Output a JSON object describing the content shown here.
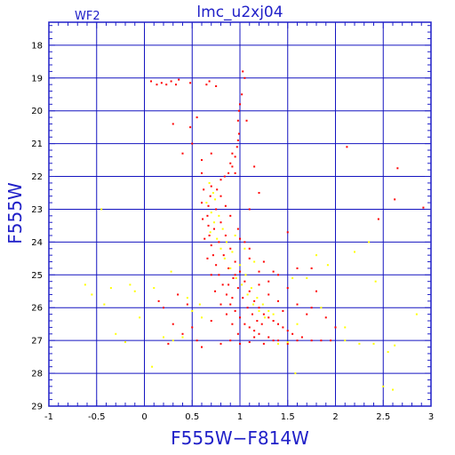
{
  "chart_data": {
    "type": "scatter",
    "title": "lmc_u2xj04",
    "subtitle": "WF2",
    "xlabel": "F555W−F814W",
    "ylabel": "F555W",
    "xlim": [
      -1,
      3
    ],
    "ylim": [
      29,
      17.3
    ],
    "y_inverted": true,
    "grid": true,
    "xticks": [
      -1,
      -0.5,
      0,
      0.5,
      1,
      1.5,
      2,
      2.5,
      3
    ],
    "yticks": [
      18,
      19,
      20,
      21,
      22,
      23,
      24,
      25,
      26,
      27,
      28,
      29
    ],
    "colors": {
      "frame": "#2020c8",
      "grid": "#1414c0",
      "series_red": "#ff0000",
      "series_yellow": "#ffff00"
    },
    "series": [
      {
        "color_key": "series_red",
        "points": [
          [
            0.07,
            19.1
          ],
          [
            0.13,
            19.2
          ],
          [
            0.18,
            19.15
          ],
          [
            0.23,
            19.2
          ],
          [
            0.28,
            19.1
          ],
          [
            0.33,
            19.2
          ],
          [
            0.36,
            19.05
          ],
          [
            0.48,
            19.15
          ],
          [
            0.65,
            19.2
          ],
          [
            0.68,
            19.1
          ],
          [
            0.75,
            19.25
          ],
          [
            1.0,
            19.8
          ],
          [
            0.99,
            20.0
          ],
          [
            0.98,
            20.3
          ],
          [
            0.99,
            20.7
          ],
          [
            0.97,
            21.1
          ],
          [
            0.95,
            21.4
          ],
          [
            0.92,
            21.7
          ],
          [
            0.88,
            21.9
          ],
          [
            0.84,
            22.0
          ],
          [
            0.8,
            22.1
          ],
          [
            0.9,
            21.6
          ],
          [
            0.92,
            21.3
          ],
          [
            0.98,
            20.9
          ],
          [
            1.02,
            19.5
          ],
          [
            1.05,
            19.0
          ],
          [
            1.03,
            18.8
          ],
          [
            1.07,
            20.3
          ],
          [
            0.95,
            21.9
          ],
          [
            0.7,
            22.3
          ],
          [
            0.69,
            22.6
          ],
          [
            0.67,
            22.9
          ],
          [
            0.66,
            23.2
          ],
          [
            0.67,
            23.5
          ],
          [
            0.68,
            23.8
          ],
          [
            0.7,
            24.1
          ],
          [
            0.72,
            24.4
          ],
          [
            0.75,
            24.7
          ],
          [
            0.78,
            25.0
          ],
          [
            0.82,
            25.3
          ],
          [
            0.86,
            25.6
          ],
          [
            0.9,
            25.9
          ],
          [
            0.95,
            26.1
          ],
          [
            1.0,
            26.3
          ],
          [
            1.05,
            26.5
          ],
          [
            1.1,
            26.6
          ],
          [
            1.15,
            26.7
          ],
          [
            1.2,
            26.8
          ],
          [
            1.3,
            26.9
          ],
          [
            1.4,
            27.0
          ],
          [
            0.75,
            23.0
          ],
          [
            0.8,
            23.4
          ],
          [
            0.85,
            23.8
          ],
          [
            0.9,
            24.2
          ],
          [
            0.95,
            24.6
          ],
          [
            1.0,
            24.9
          ],
          [
            1.05,
            25.2
          ],
          [
            1.1,
            25.5
          ],
          [
            1.15,
            25.8
          ],
          [
            1.2,
            26.0
          ],
          [
            1.25,
            26.2
          ],
          [
            0.73,
            23.6
          ],
          [
            0.78,
            24.0
          ],
          [
            0.83,
            24.4
          ],
          [
            0.88,
            24.8
          ],
          [
            0.93,
            25.1
          ],
          [
            0.98,
            25.4
          ],
          [
            1.03,
            25.7
          ],
          [
            1.08,
            26.0
          ],
          [
            1.13,
            26.2
          ],
          [
            1.18,
            26.4
          ],
          [
            1.23,
            26.5
          ],
          [
            0.62,
            22.4
          ],
          [
            0.6,
            22.8
          ],
          [
            0.61,
            23.3
          ],
          [
            0.63,
            23.9
          ],
          [
            0.66,
            24.5
          ],
          [
            0.7,
            25.0
          ],
          [
            0.74,
            25.5
          ],
          [
            0.8,
            25.9
          ],
          [
            0.86,
            26.2
          ],
          [
            0.92,
            26.5
          ],
          [
            0.98,
            26.8
          ],
          [
            1.35,
            26.4
          ],
          [
            1.45,
            26.6
          ],
          [
            1.55,
            26.8
          ],
          [
            1.65,
            26.9
          ],
          [
            1.75,
            27.0
          ],
          [
            1.85,
            27.0
          ],
          [
            1.5,
            27.1
          ],
          [
            1.6,
            27.0
          ],
          [
            1.3,
            26.3
          ],
          [
            1.4,
            26.5
          ],
          [
            1.5,
            26.7
          ],
          [
            0.7,
            26.4
          ],
          [
            0.5,
            26.6
          ],
          [
            0.55,
            27.0
          ],
          [
            0.4,
            26.8
          ],
          [
            0.3,
            26.5
          ],
          [
            0.25,
            27.1
          ],
          [
            0.6,
            27.2
          ],
          [
            0.8,
            27.1
          ],
          [
            0.9,
            27.0
          ],
          [
            1.0,
            27.1
          ],
          [
            1.1,
            27.05
          ],
          [
            1.3,
            25.2
          ],
          [
            1.5,
            25.4
          ],
          [
            1.6,
            25.9
          ],
          [
            1.7,
            26.2
          ],
          [
            1.4,
            25.0
          ],
          [
            1.6,
            24.8
          ],
          [
            1.8,
            25.5
          ],
          [
            1.75,
            26.0
          ],
          [
            1.9,
            26.3
          ],
          [
            2.0,
            26.6
          ],
          [
            1.95,
            27.0
          ],
          [
            0.5,
            21.0
          ],
          [
            0.4,
            21.3
          ],
          [
            0.6,
            21.5
          ],
          [
            0.3,
            20.4
          ],
          [
            0.55,
            20.2
          ],
          [
            0.48,
            20.5
          ],
          [
            0.6,
            21.9
          ],
          [
            0.7,
            21.3
          ],
          [
            1.15,
            21.7
          ],
          [
            1.2,
            22.5
          ],
          [
            1.1,
            23.0
          ],
          [
            2.12,
            21.1
          ],
          [
            2.65,
            21.75
          ],
          [
            2.62,
            22.7
          ],
          [
            2.45,
            23.3
          ],
          [
            2.92,
            22.95
          ],
          [
            1.5,
            23.7
          ],
          [
            1.75,
            24.8
          ],
          [
            0.35,
            25.6
          ],
          [
            0.45,
            25.9
          ],
          [
            0.15,
            25.8
          ],
          [
            0.2,
            26.0
          ],
          [
            1.1,
            24.2
          ],
          [
            1.25,
            24.6
          ],
          [
            1.35,
            24.9
          ],
          [
            1.2,
            25.3
          ],
          [
            1.3,
            25.6
          ],
          [
            1.4,
            25.8
          ],
          [
            1.45,
            26.1
          ],
          [
            1.15,
            26.9
          ],
          [
            1.25,
            27.1
          ],
          [
            1.35,
            27.0
          ],
          [
            0.95,
            25.0
          ],
          [
            1.05,
            24.0
          ],
          [
            0.98,
            23.6
          ],
          [
            0.9,
            23.2
          ],
          [
            0.85,
            22.9
          ],
          [
            0.8,
            22.6
          ],
          [
            0.76,
            22.4
          ],
          [
            1.0,
            23.9
          ],
          [
            1.1,
            24.5
          ],
          [
            1.2,
            24.9
          ],
          [
            0.88,
            25.3
          ],
          [
            0.92,
            25.7
          ]
        ]
      },
      {
        "color_key": "series_yellow",
        "points": [
          [
            0.68,
            22.2
          ],
          [
            0.72,
            22.5
          ],
          [
            0.65,
            22.8
          ],
          [
            0.7,
            23.1
          ],
          [
            0.73,
            23.4
          ],
          [
            0.69,
            23.7
          ],
          [
            0.76,
            23.9
          ],
          [
            0.8,
            24.2
          ],
          [
            0.84,
            24.5
          ],
          [
            0.9,
            24.8
          ],
          [
            0.96,
            25.1
          ],
          [
            1.02,
            25.3
          ],
          [
            1.08,
            25.6
          ],
          [
            1.14,
            25.9
          ],
          [
            1.2,
            26.1
          ],
          [
            1.26,
            26.3
          ],
          [
            0.74,
            22.7
          ],
          [
            0.78,
            23.2
          ],
          [
            0.82,
            23.6
          ],
          [
            0.86,
            24.0
          ],
          [
            0.92,
            24.3
          ],
          [
            1.0,
            24.7
          ],
          [
            1.06,
            25.0
          ],
          [
            1.12,
            25.4
          ],
          [
            1.18,
            25.7
          ],
          [
            1.24,
            25.9
          ],
          [
            1.3,
            26.1
          ],
          [
            1.35,
            26.2
          ],
          [
            0.95,
            23.8
          ],
          [
            1.05,
            24.2
          ],
          [
            1.15,
            24.6
          ],
          [
            -0.62,
            25.3
          ],
          [
            -0.55,
            25.6
          ],
          [
            -0.42,
            25.9
          ],
          [
            -0.35,
            25.4
          ],
          [
            -0.15,
            25.3
          ],
          [
            -0.05,
            26.3
          ],
          [
            -0.3,
            26.8
          ],
          [
            -0.2,
            27.05
          ],
          [
            -0.1,
            25.5
          ],
          [
            0.1,
            25.4
          ],
          [
            0.28,
            24.9
          ],
          [
            0.45,
            25.7
          ],
          [
            0.5,
            26.1
          ],
          [
            0.6,
            26.3
          ],
          [
            0.58,
            25.9
          ],
          [
            0.4,
            26.9
          ],
          [
            0.3,
            27.0
          ],
          [
            0.08,
            27.8
          ],
          [
            0.2,
            26.9
          ],
          [
            -0.45,
            23.0
          ],
          [
            1.85,
            26.0
          ],
          [
            2.1,
            26.6
          ],
          [
            2.1,
            27.0
          ],
          [
            2.25,
            27.1
          ],
          [
            2.4,
            27.1
          ],
          [
            2.55,
            27.35
          ],
          [
            2.62,
            27.15
          ],
          [
            2.85,
            26.2
          ],
          [
            2.42,
            25.2
          ],
          [
            2.5,
            28.4
          ],
          [
            2.6,
            28.5
          ],
          [
            2.35,
            24.0
          ],
          [
            2.2,
            24.3
          ],
          [
            1.8,
            24.4
          ],
          [
            1.7,
            25.1
          ],
          [
            1.92,
            24.7
          ],
          [
            1.55,
            25.1
          ],
          [
            1.6,
            26.5
          ],
          [
            1.5,
            27.05
          ],
          [
            1.4,
            27.1
          ],
          [
            1.58,
            28.0
          ]
        ]
      }
    ]
  }
}
